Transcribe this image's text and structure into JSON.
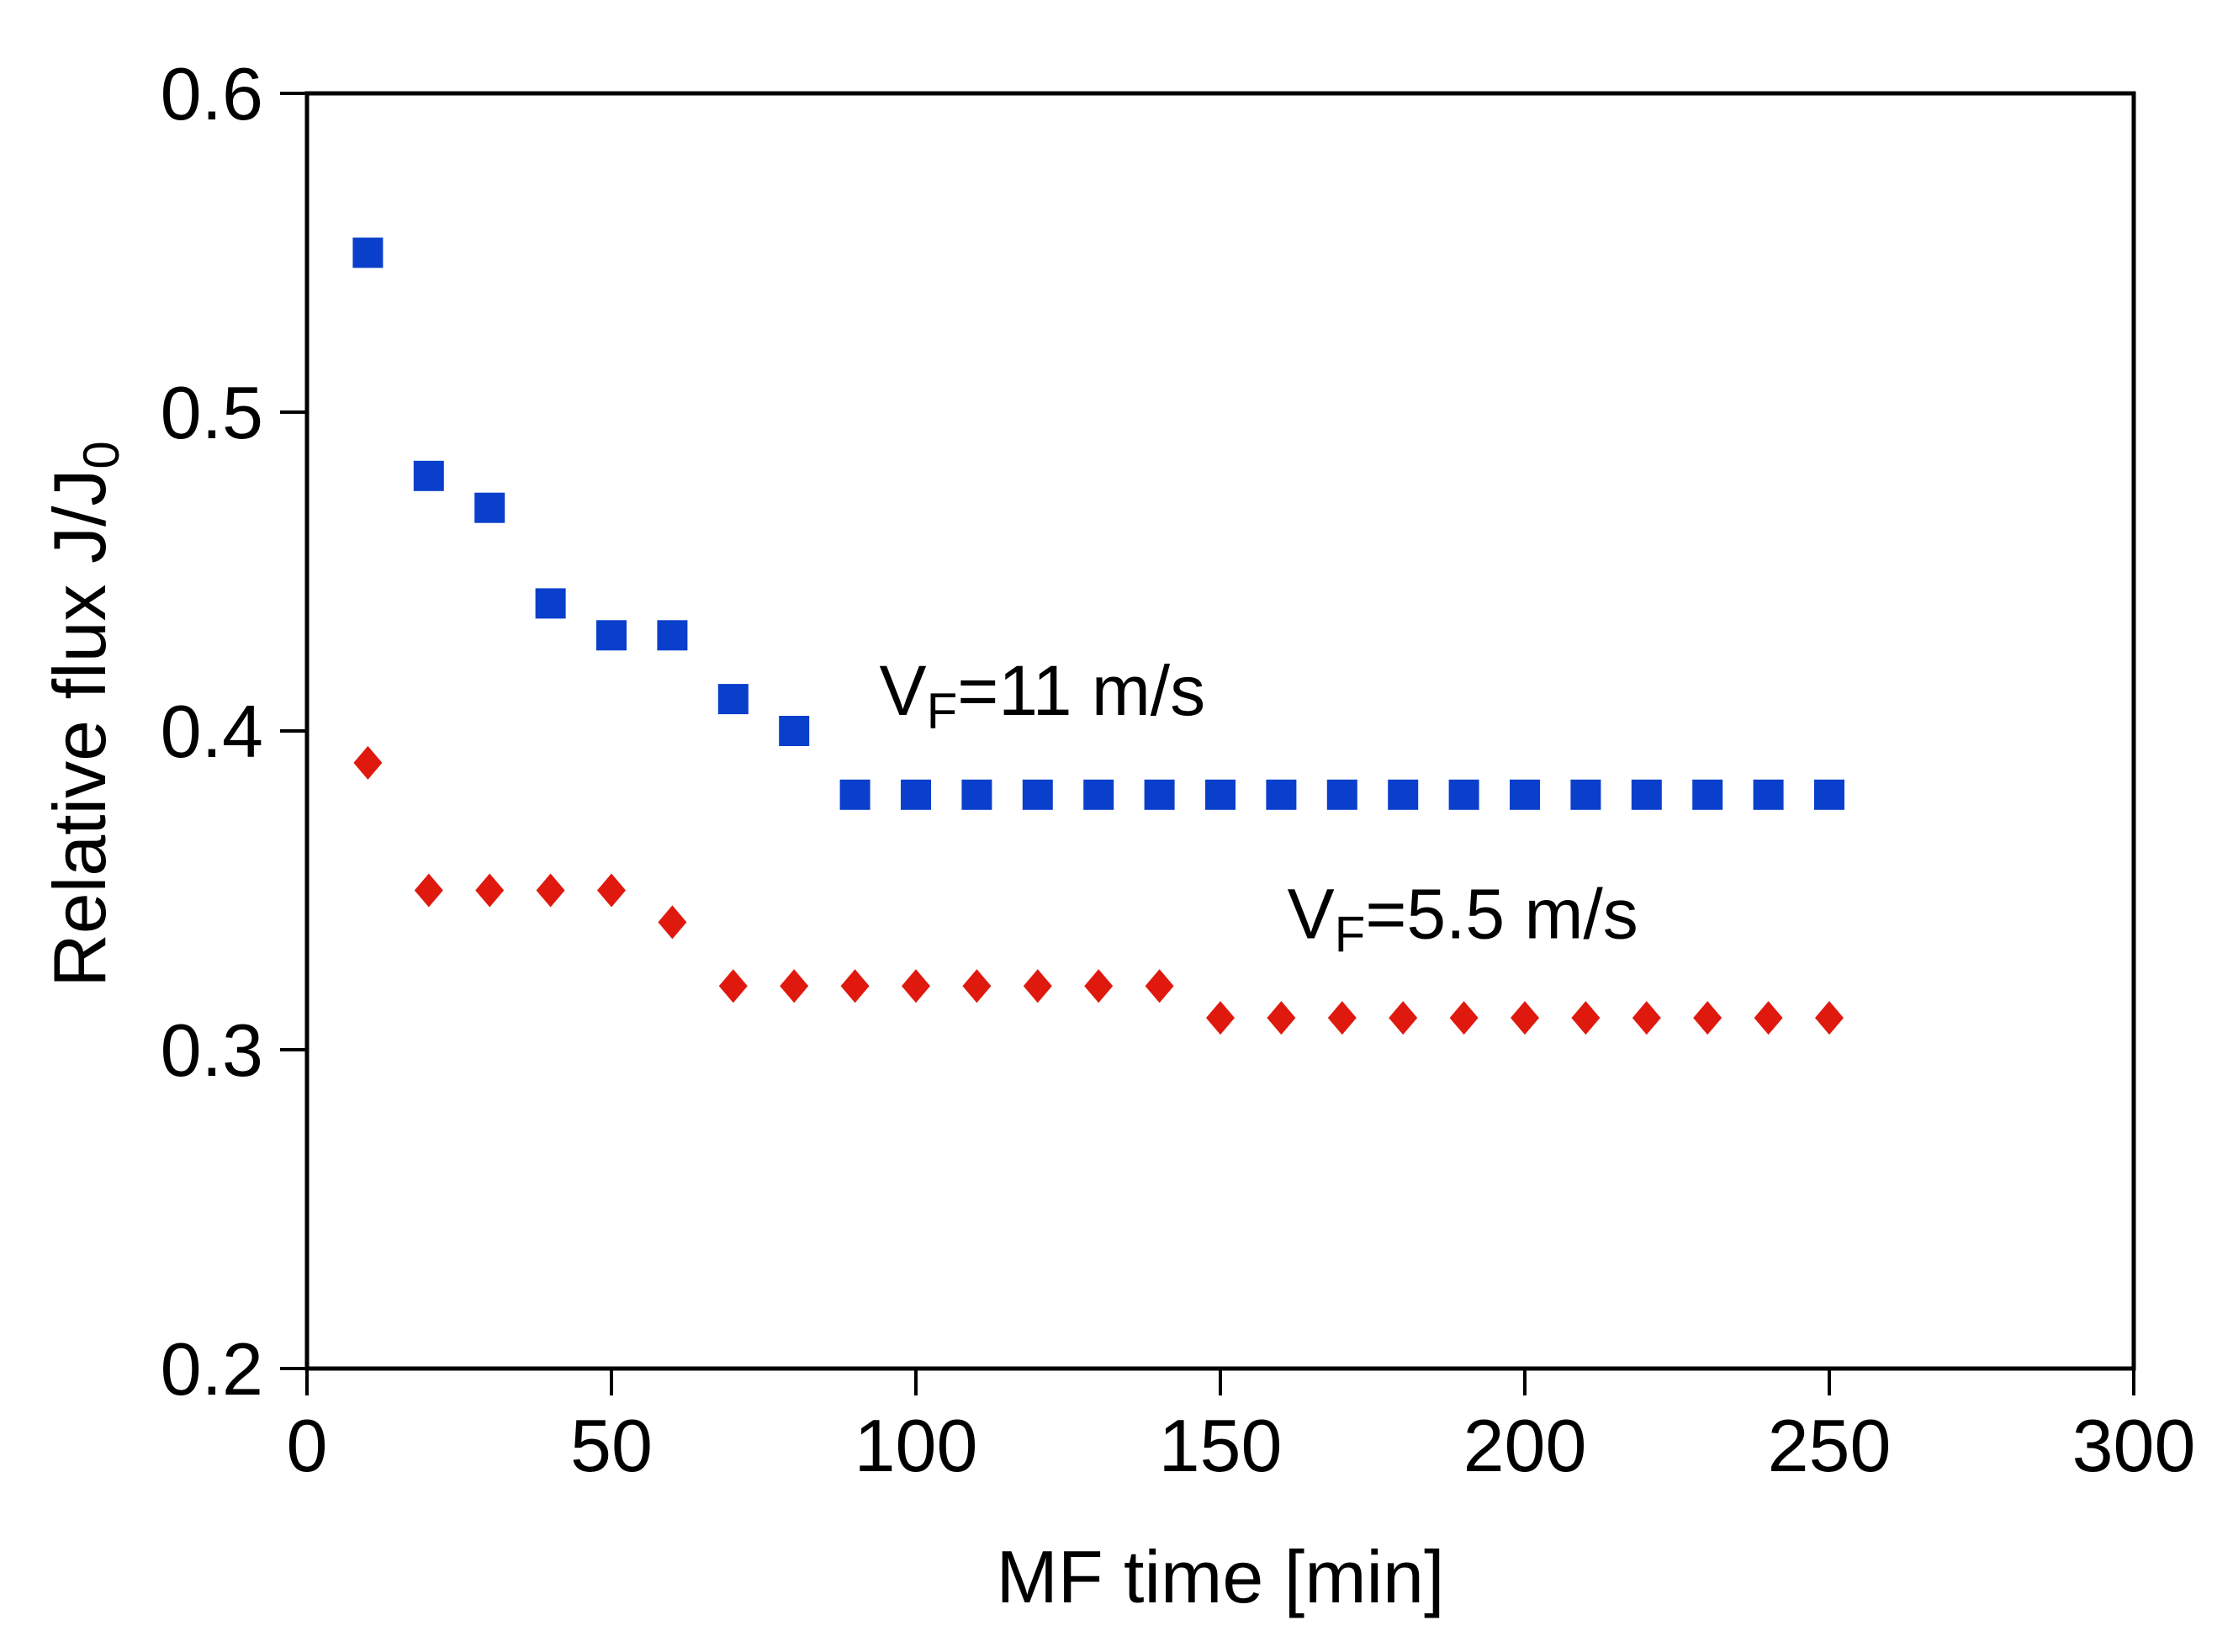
{
  "chart_data": {
    "type": "scatter",
    "title": "",
    "xlabel": "MF time [min]",
    "ylabel": {
      "main": "Relative flux J/J",
      "subscript": "0"
    },
    "xlim": [
      0,
      300
    ],
    "ylim": [
      0.2,
      0.6
    ],
    "x_ticks": [
      0,
      50,
      100,
      150,
      200,
      250,
      300
    ],
    "y_ticks": [
      0.2,
      0.3,
      0.4,
      0.5,
      0.6
    ],
    "x_tick_labels": [
      "0",
      "50",
      "100",
      "150",
      "200",
      "250",
      "300"
    ],
    "y_tick_labels": [
      "0.2",
      "0.3",
      "0.4",
      "0.5",
      "0.6"
    ],
    "grid": false,
    "series": [
      {
        "name": "VF=11 m/s",
        "marker": "square",
        "color": "#0a3fcc",
        "x": [
          10,
          20,
          30,
          40,
          50,
          60,
          70,
          80,
          90,
          100,
          110,
          120,
          130,
          140,
          150,
          160,
          170,
          180,
          190,
          200,
          210,
          220,
          230,
          240,
          250
        ],
        "y": [
          0.55,
          0.48,
          0.47,
          0.44,
          0.43,
          0.43,
          0.41,
          0.4,
          0.38,
          0.38,
          0.38,
          0.38,
          0.38,
          0.38,
          0.38,
          0.38,
          0.38,
          0.38,
          0.38,
          0.38,
          0.38,
          0.38,
          0.38,
          0.38,
          0.38
        ]
      },
      {
        "name": "VF=5.5 m/s",
        "marker": "diamond",
        "color": "#e0190f",
        "x": [
          10,
          20,
          30,
          40,
          50,
          60,
          70,
          80,
          90,
          100,
          110,
          120,
          130,
          140,
          150,
          160,
          170,
          180,
          190,
          200,
          210,
          220,
          230,
          240,
          250
        ],
        "y": [
          0.39,
          0.35,
          0.35,
          0.35,
          0.35,
          0.34,
          0.32,
          0.32,
          0.32,
          0.32,
          0.32,
          0.32,
          0.32,
          0.32,
          0.31,
          0.31,
          0.31,
          0.31,
          0.31,
          0.31,
          0.31,
          0.31,
          0.31,
          0.31,
          0.31
        ]
      }
    ],
    "annotations": [
      {
        "id": "fast",
        "main": "V",
        "subscript": "F",
        "rest": "=11 m/s",
        "x": 94,
        "y": 0.405
      },
      {
        "id": "slow",
        "main": "V",
        "subscript": "F",
        "rest": "=5.5 m/s",
        "x": 161,
        "y": 0.335
      }
    ]
  }
}
